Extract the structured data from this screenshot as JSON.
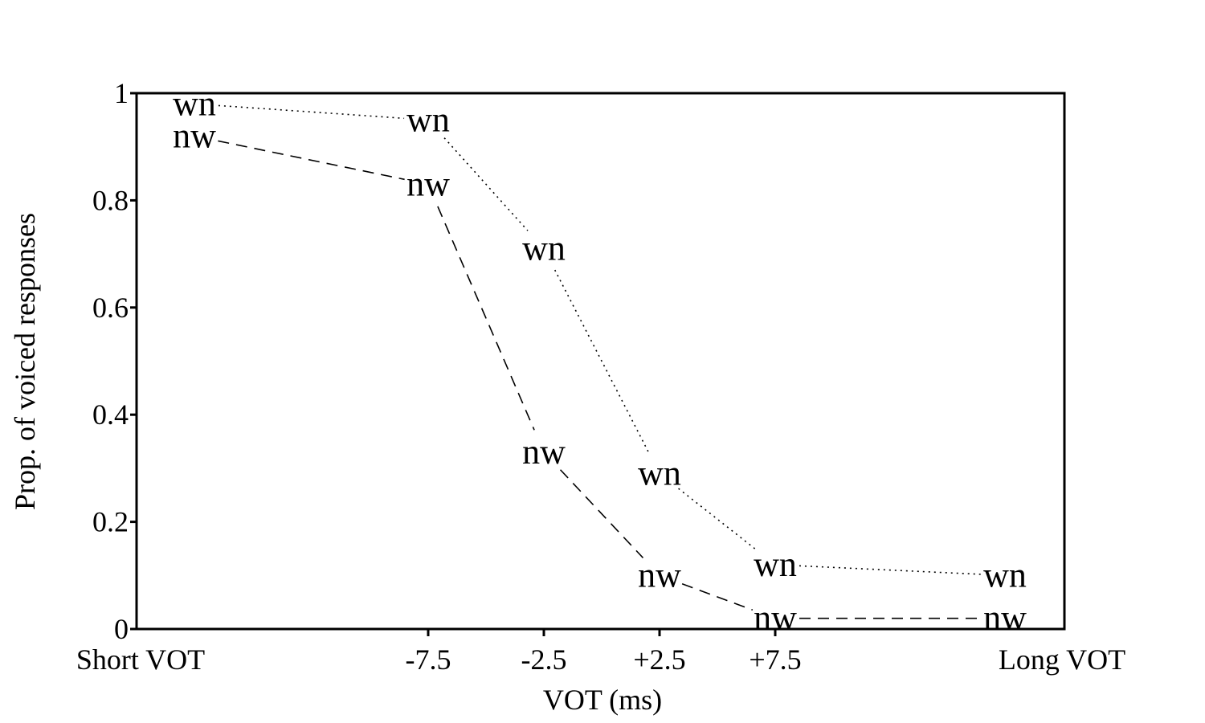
{
  "chart_data": {
    "type": "line",
    "title": "",
    "xlabel": "VOT (ms)",
    "ylabel": "Prop. of voiced responses",
    "x_categories": [
      "Short VOT",
      "-7.5",
      "-2.5",
      "+2.5",
      "+7.5",
      "Long VOT"
    ],
    "y_ticks": [
      "0",
      "0.2",
      "0.4",
      "0.6",
      "0.8",
      "1"
    ],
    "ylim": [
      0,
      1
    ],
    "grid": false,
    "legend": "none",
    "series": [
      {
        "name": "wn",
        "line_style": "dotted",
        "values": [
          0.98,
          0.95,
          0.71,
          0.29,
          0.12,
          0.1
        ]
      },
      {
        "name": "nw",
        "line_style": "dashed",
        "values": [
          0.92,
          0.83,
          0.33,
          0.1,
          0.02,
          0.02
        ]
      }
    ]
  }
}
